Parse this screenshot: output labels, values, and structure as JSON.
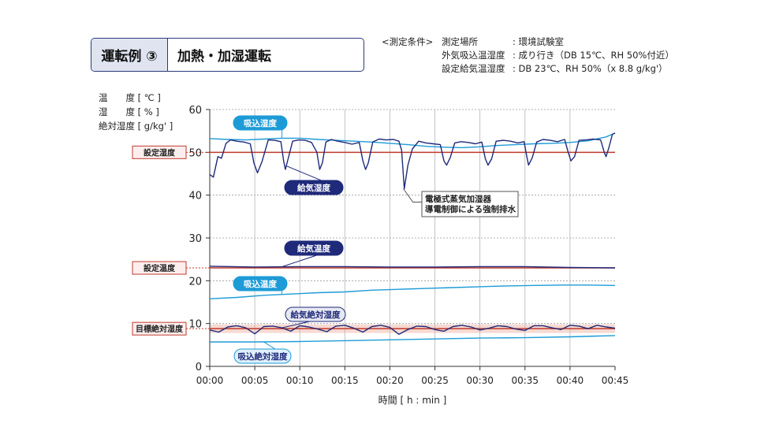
{
  "header": {
    "title_left": "運転例 ③",
    "title_right": "加熱・加湿運転"
  },
  "conditions": {
    "label": "<測定条件>",
    "rows": [
      {
        "key": "測定場所",
        "value": ": 環境試験室"
      },
      {
        "key": "外気吸込温湿度",
        "value": ": 成り行き（DB 15℃、RH 50%付近）"
      },
      {
        "key": "設定給気温湿度",
        "value": ": DB 23℃、RH 50%（x 8.8 g/kg'）"
      }
    ]
  },
  "y_axis_labels": [
    "温　　度 [ ℃ ]",
    "湿　　度 [ % ]",
    "絶対湿度 [ g/kg' ]"
  ],
  "chart_data": {
    "type": "line",
    "xlabel": "時間 [ h : min ]",
    "ylim": [
      0,
      60
    ],
    "yticks": [
      0,
      10,
      20,
      30,
      40,
      50,
      60
    ],
    "xticks": [
      "00:00",
      "00:05",
      "00:10",
      "00:15",
      "00:20",
      "00:25",
      "00:30",
      "00:35",
      "00:40",
      "00:45"
    ],
    "grid": true,
    "colors": {
      "supply": "#1f2a7a",
      "intake": "#1e9bd7",
      "setpoint": "#c0392b",
      "target_band": "#f6d9d2"
    },
    "setpoints": [
      {
        "label": "設定湿度",
        "value": 50
      },
      {
        "label": "設定温度",
        "value": 23
      },
      {
        "label": "目標絶対湿度",
        "value": 8.8
      }
    ],
    "target_band": [
      7.8,
      9.8
    ],
    "series": [
      {
        "name": "吸込湿度",
        "key": "intake_rh",
        "color": "#1e9bd7",
        "x": [
          0,
          2,
          4,
          6,
          8,
          10,
          12,
          14,
          16,
          18,
          20,
          22,
          24,
          26,
          28,
          30,
          32,
          34,
          36,
          38,
          40,
          42,
          44,
          45
        ],
        "y": [
          53.2,
          53.0,
          52.9,
          53.1,
          53.3,
          53.3,
          53.0,
          52.8,
          52.6,
          52.4,
          52.1,
          51.8,
          51.4,
          51.2,
          51.1,
          51.3,
          51.6,
          51.8,
          52.0,
          52.1,
          52.3,
          52.7,
          53.6,
          54.5
        ]
      },
      {
        "name": "給気湿度",
        "key": "supply_rh",
        "color": "#1f2a7a",
        "x": [
          0,
          0.4,
          0.9,
          1.3,
          1.8,
          2.3,
          3.0,
          3.8,
          4.5,
          4.9,
          5.3,
          5.8,
          6.5,
          7.2,
          7.9,
          8.2,
          8.4,
          8.7,
          9.2,
          9.9,
          10.6,
          11.3,
          11.9,
          12.2,
          12.5,
          12.9,
          13.5,
          14.2,
          15.0,
          15.8,
          16.6,
          17.0,
          17.3,
          17.6,
          18.1,
          18.8,
          19.6,
          20.4,
          21.0,
          21.3,
          21.6,
          22.0,
          22.5,
          23.2,
          24.0,
          24.8,
          25.6,
          26.0,
          26.3,
          26.7,
          27.2,
          27.9,
          28.7,
          29.5,
          30.2,
          30.6,
          30.9,
          31.3,
          31.8,
          32.6,
          33.4,
          34.2,
          34.9,
          35.2,
          35.4,
          35.8,
          36.3,
          37.0,
          37.8,
          38.6,
          39.4,
          39.8,
          40.1,
          40.5,
          41.0,
          41.8,
          42.6,
          43.4,
          43.8,
          44.0,
          44.3,
          44.7,
          45.0
        ],
        "y": [
          44.8,
          44.2,
          49.0,
          48.6,
          52.1,
          52.9,
          52.6,
          52.4,
          52.0,
          47.5,
          45.2,
          47.8,
          52.9,
          52.8,
          52.5,
          48.0,
          46.0,
          48.5,
          52.6,
          52.9,
          52.8,
          52.3,
          50.0,
          46.0,
          47.5,
          52.4,
          53.0,
          52.6,
          52.3,
          51.9,
          52.3,
          48.0,
          46.0,
          47.5,
          52.4,
          53.1,
          52.9,
          53.0,
          52.6,
          50.5,
          41.5,
          47.0,
          50.8,
          52.6,
          52.2,
          52.0,
          51.8,
          48.0,
          47.0,
          48.8,
          52.2,
          52.5,
          52.3,
          52.0,
          52.4,
          48.5,
          47.0,
          48.5,
          52.6,
          52.8,
          52.6,
          52.2,
          52.5,
          49.0,
          47.0,
          48.7,
          52.4,
          53.0,
          52.8,
          52.5,
          53.0,
          50.0,
          48.0,
          49.0,
          52.8,
          52.9,
          53.1,
          52.9,
          50.0,
          49.0,
          51.0,
          54.2,
          54.5
        ]
      },
      {
        "name": "給気温度",
        "key": "supply_temp",
        "color": "#1f2a7a",
        "x": [
          0,
          5,
          10,
          15,
          20,
          25,
          30,
          35,
          40,
          45
        ],
        "y": [
          23.4,
          23.2,
          23.3,
          23.3,
          23.2,
          23.2,
          23.3,
          23.3,
          23.1,
          23.0
        ]
      },
      {
        "name": "吸込温度",
        "key": "intake_temp",
        "color": "#1e9bd7",
        "x": [
          0,
          3,
          6,
          9,
          12,
          15,
          18,
          21,
          24,
          27,
          30,
          33,
          36,
          39,
          42,
          45
        ],
        "y": [
          15.8,
          16.1,
          16.6,
          16.9,
          17.2,
          17.4,
          17.8,
          18.0,
          18.2,
          18.4,
          18.6,
          18.8,
          18.9,
          19.0,
          19.0,
          18.9
        ]
      },
      {
        "name": "給気絶対湿度",
        "key": "supply_ah",
        "color": "#1f2a7a",
        "x": [
          0,
          1,
          2,
          3,
          4,
          5,
          6,
          7,
          8,
          9,
          10,
          11,
          12,
          13,
          14,
          15,
          16,
          17,
          18,
          19,
          20,
          21,
          22,
          23,
          24,
          25,
          26,
          27,
          28,
          29,
          30,
          31,
          32,
          33,
          34,
          35,
          36,
          37,
          38,
          39,
          40,
          41,
          42,
          43,
          44,
          45
        ],
        "y": [
          8.5,
          8.0,
          9.2,
          9.5,
          9.0,
          7.6,
          9.3,
          9.4,
          9.0,
          8.2,
          9.5,
          9.2,
          8.7,
          8.1,
          9.4,
          9.6,
          8.9,
          8.0,
          9.3,
          9.6,
          9.1,
          7.5,
          8.6,
          9.4,
          9.3,
          8.6,
          8.2,
          9.3,
          9.6,
          9.2,
          8.5,
          8.9,
          9.5,
          9.3,
          8.7,
          8.4,
          9.5,
          9.5,
          9.0,
          8.6,
          9.6,
          9.4,
          8.8,
          9.6,
          9.2,
          8.9
        ]
      },
      {
        "name": "吸込絶対湿度",
        "key": "intake_ah",
        "color": "#1e9bd7",
        "x": [
          0,
          5,
          10,
          15,
          20,
          25,
          30,
          35,
          40,
          45
        ],
        "y": [
          5.7,
          5.7,
          5.8,
          6.0,
          6.2,
          6.4,
          6.6,
          6.7,
          6.9,
          7.2
        ]
      }
    ],
    "callouts": [
      {
        "text": "吸込湿度",
        "style": "intake",
        "series": "intake_rh"
      },
      {
        "text": "給気湿度",
        "style": "supply",
        "series": "supply_rh"
      },
      {
        "text": "給気温度",
        "style": "supply",
        "series": "supply_temp"
      },
      {
        "text": "吸込温度",
        "style": "intake",
        "series": "intake_temp"
      },
      {
        "text": "給気絶対湿度",
        "style": "supply-light",
        "series": "supply_ah"
      },
      {
        "text": "吸込絶対湿度",
        "style": "intake-light",
        "series": "intake_ah"
      }
    ],
    "annotation": {
      "lines": [
        "電極式蒸気加湿器",
        "導電制御による強制排水"
      ],
      "x": 21.5,
      "y": 41.5
    }
  }
}
